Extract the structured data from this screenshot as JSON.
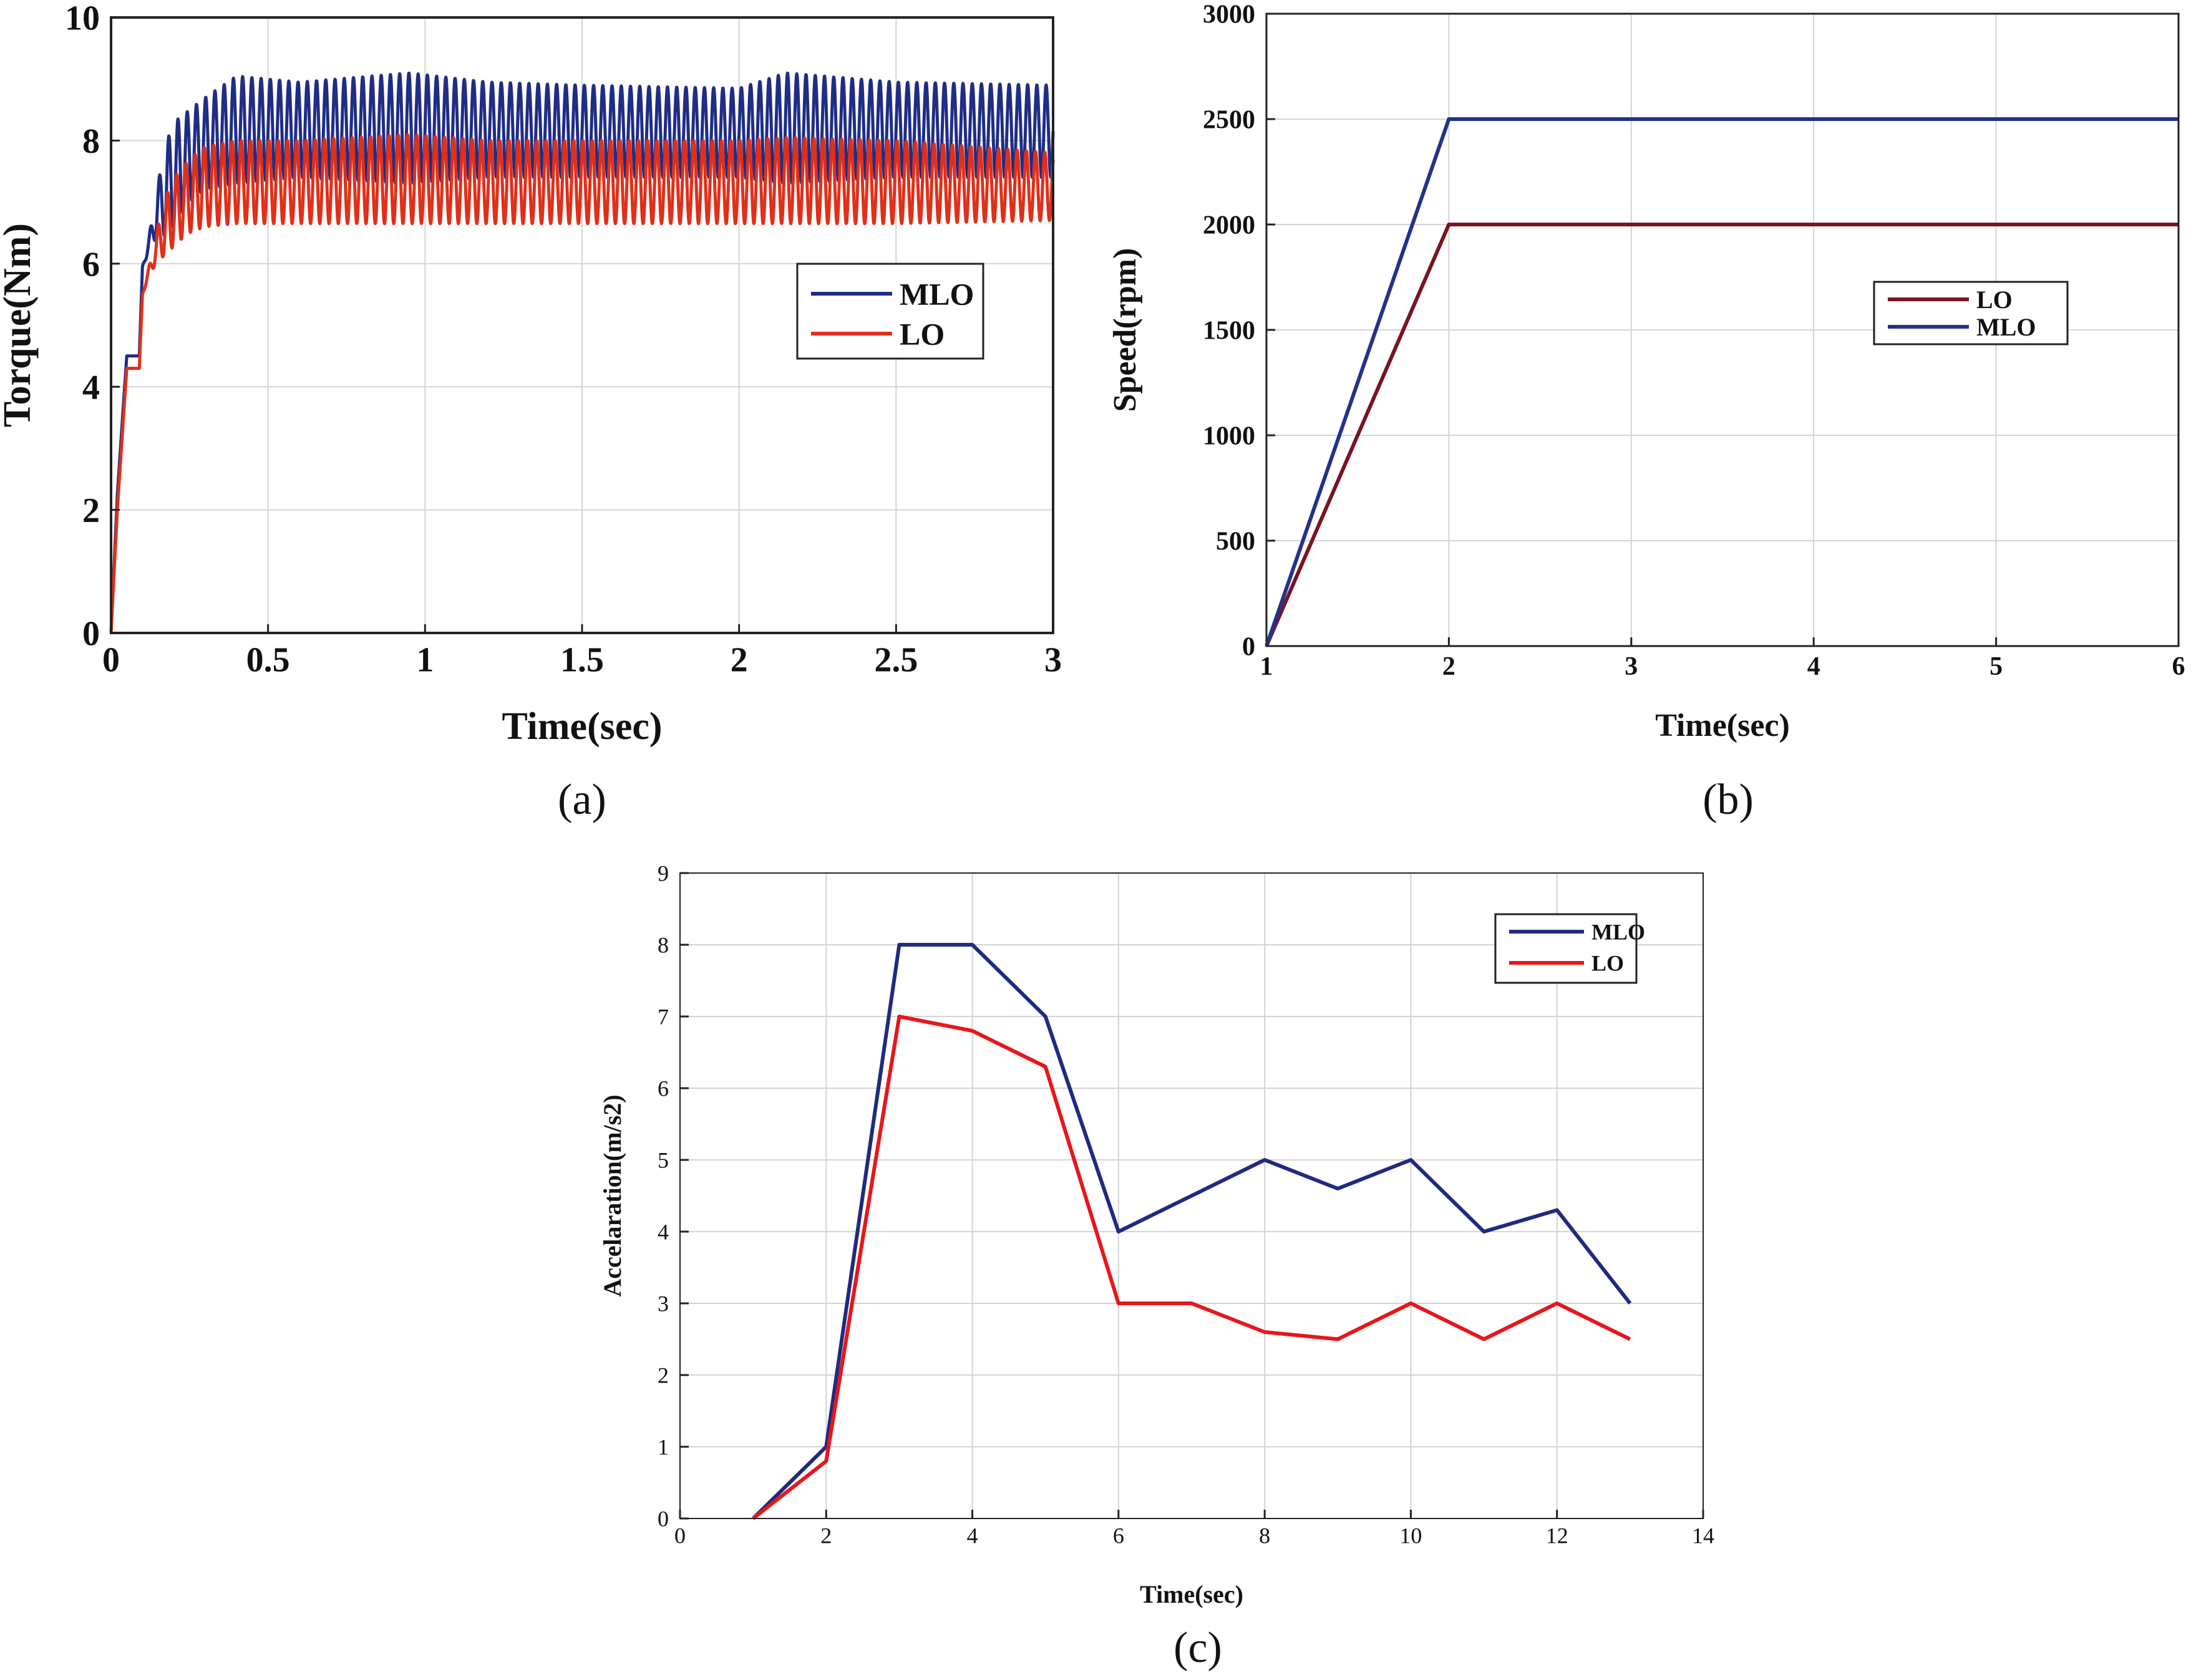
{
  "chart_data": [
    {
      "id": "a",
      "type": "line",
      "panel_label": "(a)",
      "xlabel": "Time(sec)",
      "ylabel": "Torque(Nm)",
      "xlim": [
        0,
        3
      ],
      "ylim": [
        0,
        10
      ],
      "xticks": [
        0,
        0.5,
        1,
        1.5,
        2,
        2.5,
        3
      ],
      "xtick_labels": [
        "0",
        "0.5",
        "1",
        "1.5",
        "2",
        "2.5",
        "3"
      ],
      "yticks": [
        0,
        2,
        4,
        6,
        8,
        10
      ],
      "ytick_labels": [
        "0",
        "2",
        "4",
        "6",
        "8",
        "10"
      ],
      "grid": true,
      "legend_position": "middle-right",
      "series": [
        {
          "name": "MLO",
          "color": "#1f2d86",
          "description": "oscillating torque, envelope",
          "x": [
            0,
            0.02,
            0.05,
            0.09,
            0.1,
            0.12,
            0.15,
            0.2,
            0.25,
            0.3,
            0.4,
            0.6,
            0.95,
            1.2,
            1.5,
            2.0,
            2.15,
            2.5,
            3.0
          ],
          "upper": [
            0,
            2.5,
            4.6,
            4.6,
            6.5,
            6.8,
            7.6,
            8.3,
            8.5,
            8.7,
            9.05,
            8.95,
            9.1,
            8.95,
            8.9,
            8.85,
            9.1,
            8.95,
            8.9
          ],
          "lower": [
            0,
            2.0,
            4.4,
            4.4,
            5.4,
            5.8,
            6.2,
            6.6,
            7.0,
            7.2,
            7.3,
            7.4,
            7.3,
            7.4,
            7.4,
            7.4,
            7.3,
            7.4,
            7.4
          ],
          "cycles_per_sec": 34
        },
        {
          "name": "LO",
          "color": "#e0301a",
          "description": "oscillating torque, envelope",
          "x": [
            0,
            0.02,
            0.05,
            0.09,
            0.1,
            0.12,
            0.15,
            0.2,
            0.25,
            0.3,
            0.4,
            0.6,
            0.95,
            1.2,
            1.5,
            2.0,
            2.15,
            2.5,
            3.0
          ],
          "upper": [
            0,
            2.2,
            4.4,
            4.4,
            5.8,
            6.2,
            6.8,
            7.4,
            7.7,
            7.9,
            8.0,
            8.0,
            8.1,
            8.0,
            8.0,
            8.0,
            8.05,
            8.0,
            7.8
          ],
          "lower": [
            0,
            1.8,
            4.2,
            4.2,
            5.2,
            5.5,
            5.9,
            6.3,
            6.5,
            6.6,
            6.65,
            6.65,
            6.65,
            6.65,
            6.65,
            6.65,
            6.65,
            6.65,
            6.7
          ],
          "cycles_per_sec": 34
        }
      ]
    },
    {
      "id": "b",
      "type": "line",
      "panel_label": "(b)",
      "xlabel": "Time(sec)",
      "ylabel": "Speed(rpm)",
      "xlim": [
        1,
        6
      ],
      "ylim": [
        0,
        3000
      ],
      "xticks": [
        1,
        2,
        3,
        4,
        5,
        6
      ],
      "xtick_labels": [
        "1",
        "2",
        "3",
        "4",
        "5",
        "6"
      ],
      "yticks": [
        0,
        500,
        1000,
        1500,
        2000,
        2500,
        3000
      ],
      "ytick_labels": [
        "0",
        "500",
        "1000",
        "1500",
        "2000",
        "2500",
        "3000"
      ],
      "grid": true,
      "legend_position": "middle-right",
      "series": [
        {
          "name": "LO",
          "color": "#7a1420",
          "x": [
            1,
            2,
            6
          ],
          "y": [
            0,
            2000,
            2000
          ]
        },
        {
          "name": "MLO",
          "color": "#24318c",
          "x": [
            1,
            2,
            6
          ],
          "y": [
            0,
            2500,
            2500
          ]
        }
      ]
    },
    {
      "id": "c",
      "type": "line",
      "panel_label": "(c)",
      "xlabel": "Time(sec)",
      "ylabel": "Accelaration(m/s2)",
      "xlim": [
        0,
        14
      ],
      "ylim": [
        0,
        9
      ],
      "xticks": [
        0,
        2,
        4,
        6,
        8,
        10,
        12,
        14
      ],
      "xtick_labels": [
        "0",
        "2",
        "4",
        "6",
        "8",
        "10",
        "12",
        "14"
      ],
      "yticks": [
        0,
        1,
        2,
        3,
        4,
        5,
        6,
        7,
        8,
        9
      ],
      "ytick_labels": [
        "0",
        "1",
        "2",
        "3",
        "4",
        "5",
        "6",
        "7",
        "8",
        "9"
      ],
      "grid": true,
      "legend_position": "top-right",
      "series": [
        {
          "name": "MLO",
          "color": "#1f2a80",
          "x": [
            1,
            2,
            3,
            4,
            5,
            6,
            7,
            8,
            9,
            10,
            11,
            12,
            13
          ],
          "y": [
            0,
            1,
            8,
            8,
            7,
            4,
            4.5,
            5,
            4.6,
            5,
            4,
            4.3,
            3
          ]
        },
        {
          "name": "LO",
          "color": "#e8161b",
          "x": [
            1,
            2,
            3,
            4,
            5,
            6,
            7,
            8,
            9,
            10,
            11,
            12,
            13
          ],
          "y": [
            0,
            0.8,
            7,
            6.8,
            6.3,
            3,
            3,
            2.6,
            2.5,
            3,
            2.5,
            3,
            2.5
          ]
        }
      ]
    }
  ]
}
